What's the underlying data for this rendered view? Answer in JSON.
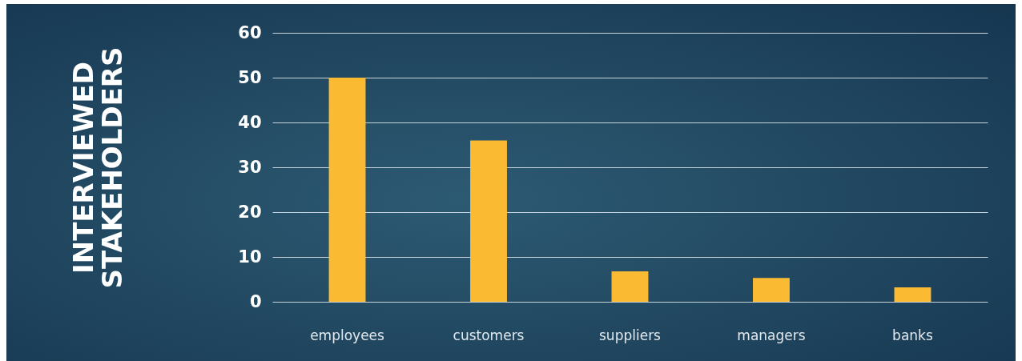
{
  "chart_data": {
    "type": "bar",
    "ylabel": "INTERVIEWED STAKEHOLDERS",
    "categories": [
      "employees",
      "customers",
      "suppliers",
      "managers",
      "banks"
    ],
    "values": [
      50,
      36,
      6.8,
      5.3,
      3.2
    ],
    "color": "#fabb33",
    "ylim": [
      0,
      60
    ],
    "yticks": [
      0,
      10,
      20,
      30,
      40,
      50,
      60
    ],
    "grid": "y",
    "legend": false
  }
}
